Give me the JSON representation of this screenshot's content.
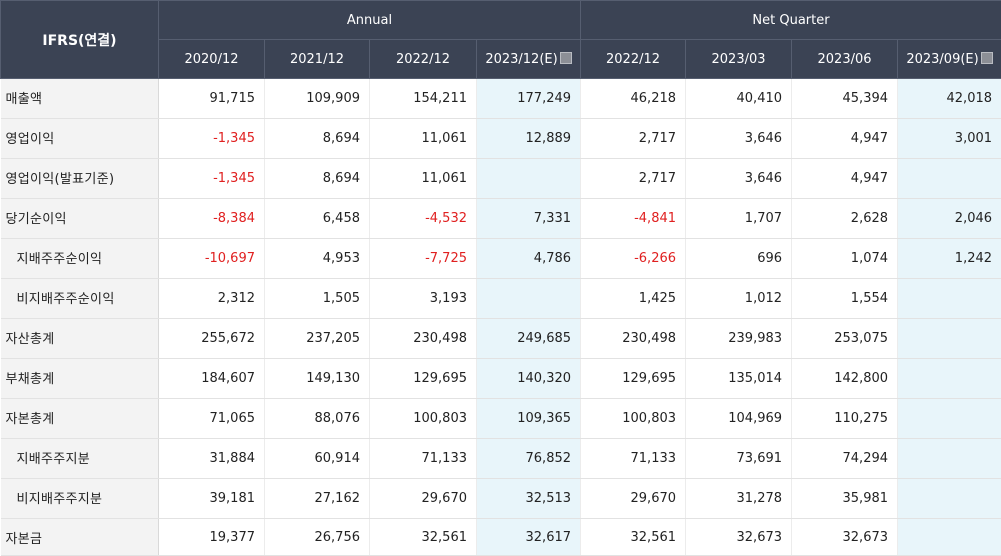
{
  "header": {
    "corner": "IFRS(연결)",
    "groups": [
      "Annual",
      "Net Quarter"
    ],
    "columns": [
      "2020/12",
      "2021/12",
      "2022/12",
      "2023/12(E)",
      "2022/12",
      "2023/03",
      "2023/06",
      "2023/09(E)"
    ]
  },
  "rows": [
    {
      "label": "매출액",
      "sub": false,
      "values": [
        "91,715",
        "109,909",
        "154,211",
        "177,249",
        "46,218",
        "40,410",
        "45,394",
        "42,018"
      ]
    },
    {
      "label": "영업이익",
      "sub": false,
      "values": [
        "-1,345",
        "8,694",
        "11,061",
        "12,889",
        "2,717",
        "3,646",
        "4,947",
        "3,001"
      ]
    },
    {
      "label": "영업이익(발표기준)",
      "sub": false,
      "values": [
        "-1,345",
        "8,694",
        "11,061",
        "",
        "2,717",
        "3,646",
        "4,947",
        ""
      ]
    },
    {
      "label": "당기순이익",
      "sub": false,
      "values": [
        "-8,384",
        "6,458",
        "-4,532",
        "7,331",
        "-4,841",
        "1,707",
        "2,628",
        "2,046"
      ]
    },
    {
      "label": "지배주주순이익",
      "sub": true,
      "values": [
        "-10,697",
        "4,953",
        "-7,725",
        "4,786",
        "-6,266",
        "696",
        "1,074",
        "1,242"
      ]
    },
    {
      "label": "비지배주주순이익",
      "sub": true,
      "values": [
        "2,312",
        "1,505",
        "3,193",
        "",
        "1,425",
        "1,012",
        "1,554",
        ""
      ]
    },
    {
      "label": "자산총계",
      "sub": false,
      "values": [
        "255,672",
        "237,205",
        "230,498",
        "249,685",
        "230,498",
        "239,983",
        "253,075",
        ""
      ]
    },
    {
      "label": "부채총계",
      "sub": false,
      "values": [
        "184,607",
        "149,130",
        "129,695",
        "140,320",
        "129,695",
        "135,014",
        "142,800",
        ""
      ]
    },
    {
      "label": "자본총계",
      "sub": false,
      "values": [
        "71,065",
        "88,076",
        "100,803",
        "109,365",
        "100,803",
        "104,969",
        "110,275",
        ""
      ]
    },
    {
      "label": "지배주주지분",
      "sub": true,
      "values": [
        "31,884",
        "60,914",
        "71,133",
        "76,852",
        "71,133",
        "73,691",
        "74,294",
        ""
      ]
    },
    {
      "label": "비지배주주지분",
      "sub": true,
      "values": [
        "39,181",
        "27,162",
        "29,670",
        "32,513",
        "29,670",
        "31,278",
        "35,981",
        ""
      ]
    },
    {
      "label": "자본금",
      "sub": false,
      "values": [
        "19,377",
        "26,756",
        "32,561",
        "32,617",
        "32,561",
        "32,673",
        "32,673",
        ""
      ]
    }
  ],
  "colors": {
    "header_bg": "#3b4354",
    "estimate_bg": "#e8f5fa",
    "negative": "#e02020",
    "label_bg": "#f3f3f3"
  },
  "icons": {
    "estimate_help": "help-icon"
  }
}
